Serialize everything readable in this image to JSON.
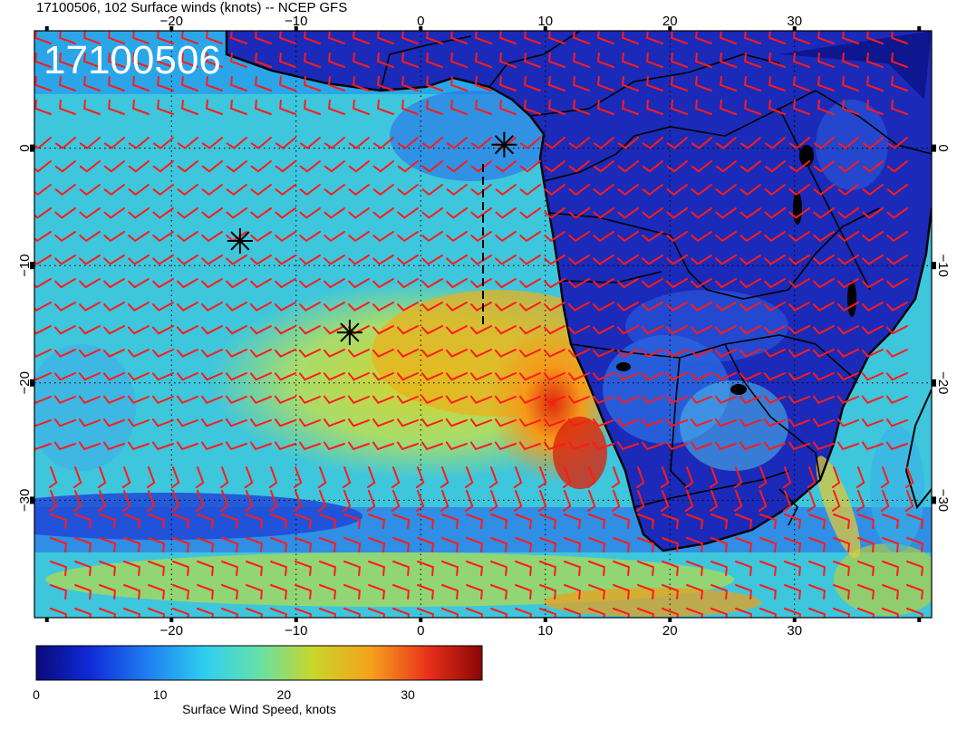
{
  "header": {
    "title": "17100506, 102 Surface winds (knots) -- NCEP GFS"
  },
  "map": {
    "stamp": "17100506",
    "projection": "cylindrical",
    "lon_range": [
      -31,
      41
    ],
    "lat_range": [
      -40,
      10
    ],
    "lon_ticks": [
      "-20",
      "-10",
      "0",
      "10",
      "20",
      "30"
    ],
    "lon_tick_values": [
      -20,
      -10,
      0,
      10,
      20,
      30
    ],
    "lat_ticks": [
      "0",
      "-10",
      "-20",
      "-30"
    ],
    "lat_tick_values": [
      0,
      -10,
      -20,
      -30
    ],
    "grid": "dotted, 10 degree",
    "field": "surface wind speed",
    "barb_color": "#ff1a1a",
    "land_outline_color": "#000000",
    "markers": [
      {
        "name": "asterisk",
        "lon": -14.5,
        "lat": -7.9
      },
      {
        "name": "asterisk",
        "lon": -5.7,
        "lat": -15.7
      },
      {
        "name": "asterisk",
        "lon": 6.7,
        "lat": 0.3
      }
    ],
    "track_line": {
      "style": "dashed",
      "lon": 5.0,
      "lat_from": -15.0,
      "lat_to": -1.0
    }
  },
  "colorbar": {
    "label": "Surface Wind Speed, knots",
    "ticks": [
      "0",
      "10",
      "20",
      "30"
    ],
    "tick_values": [
      0,
      10,
      20,
      30
    ],
    "range": [
      0,
      36
    ],
    "colors": [
      "#0a0a7a",
      "#0f2ad8",
      "#1f7ef0",
      "#2fcff0",
      "#66e0a8",
      "#c8d62a",
      "#f5a21c",
      "#e8301a",
      "#8a0505"
    ]
  }
}
